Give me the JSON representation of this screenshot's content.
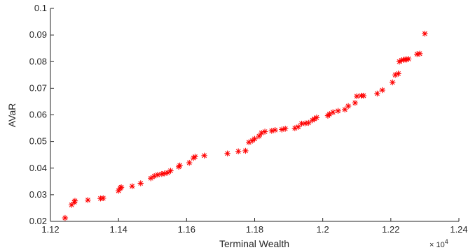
{
  "chart_data": {
    "type": "scatter",
    "xlabel": "Terminal Wealth",
    "ylabel": "AVaR",
    "x_exponent_label": "× 10",
    "x_exponent_power": "4",
    "xlim": [
      1.12,
      1.24
    ],
    "ylim": [
      0.02,
      0.1
    ],
    "x_ticks": [
      "1.12",
      "1.14",
      "1.16",
      "1.18",
      "1.2",
      "1.22",
      "1.24"
    ],
    "y_ticks": [
      "0.02",
      "0.03",
      "0.04",
      "0.05",
      "0.06",
      "0.07",
      "0.08",
      "0.09",
      "0.1"
    ],
    "x_tick_values": [
      1.12,
      1.14,
      1.16,
      1.18,
      1.2,
      1.22,
      1.24
    ],
    "y_tick_values": [
      0.02,
      0.03,
      0.04,
      0.05,
      0.06,
      0.07,
      0.08,
      0.09,
      0.1
    ],
    "grid": false,
    "marker": "asterisk",
    "marker_color": "#ff0000",
    "axis_color": "#262626",
    "points": [
      [
        1.1243,
        0.0213
      ],
      [
        1.1262,
        0.0262
      ],
      [
        1.127,
        0.0272
      ],
      [
        1.1272,
        0.0277
      ],
      [
        1.131,
        0.028
      ],
      [
        1.1347,
        0.0286
      ],
      [
        1.1355,
        0.0287
      ],
      [
        1.14,
        0.0315
      ],
      [
        1.1405,
        0.0325
      ],
      [
        1.1408,
        0.0328
      ],
      [
        1.144,
        0.0332
      ],
      [
        1.1465,
        0.0343
      ],
      [
        1.1495,
        0.0362
      ],
      [
        1.1505,
        0.037
      ],
      [
        1.1515,
        0.0375
      ],
      [
        1.1527,
        0.0378
      ],
      [
        1.1535,
        0.038
      ],
      [
        1.1545,
        0.0383
      ],
      [
        1.1553,
        0.039
      ],
      [
        1.1577,
        0.0405
      ],
      [
        1.158,
        0.041
      ],
      [
        1.1608,
        0.042
      ],
      [
        1.162,
        0.0438
      ],
      [
        1.1625,
        0.0443
      ],
      [
        1.1652,
        0.0447
      ],
      [
        1.172,
        0.0455
      ],
      [
        1.1752,
        0.0463
      ],
      [
        1.1773,
        0.0465
      ],
      [
        1.1783,
        0.0497
      ],
      [
        1.1793,
        0.0503
      ],
      [
        1.18,
        0.051
      ],
      [
        1.1813,
        0.052
      ],
      [
        1.182,
        0.0532
      ],
      [
        1.183,
        0.0537
      ],
      [
        1.185,
        0.054
      ],
      [
        1.186,
        0.0543
      ],
      [
        1.188,
        0.0545
      ],
      [
        1.189,
        0.0548
      ],
      [
        1.1918,
        0.055
      ],
      [
        1.1928,
        0.0555
      ],
      [
        1.1938,
        0.0567
      ],
      [
        1.1948,
        0.0568
      ],
      [
        1.1958,
        0.057
      ],
      [
        1.197,
        0.058
      ],
      [
        1.1975,
        0.0585
      ],
      [
        1.1982,
        0.059
      ],
      [
        1.2015,
        0.0597
      ],
      [
        1.202,
        0.0603
      ],
      [
        1.203,
        0.061
      ],
      [
        1.2045,
        0.0615
      ],
      [
        1.2065,
        0.062
      ],
      [
        1.2075,
        0.0633
      ],
      [
        1.2095,
        0.0645
      ],
      [
        1.21,
        0.067
      ],
      [
        1.2113,
        0.0672
      ],
      [
        1.212,
        0.0672
      ],
      [
        1.216,
        0.068
      ],
      [
        1.2175,
        0.0693
      ],
      [
        1.2205,
        0.0722
      ],
      [
        1.2213,
        0.075
      ],
      [
        1.2222,
        0.0755
      ],
      [
        1.2225,
        0.08
      ],
      [
        1.2232,
        0.0805
      ],
      [
        1.2237,
        0.0807
      ],
      [
        1.2242,
        0.0808
      ],
      [
        1.2247,
        0.0808
      ],
      [
        1.2252,
        0.081
      ],
      [
        1.2277,
        0.0828
      ],
      [
        1.2285,
        0.083
      ],
      [
        1.23,
        0.0905
      ]
    ]
  }
}
